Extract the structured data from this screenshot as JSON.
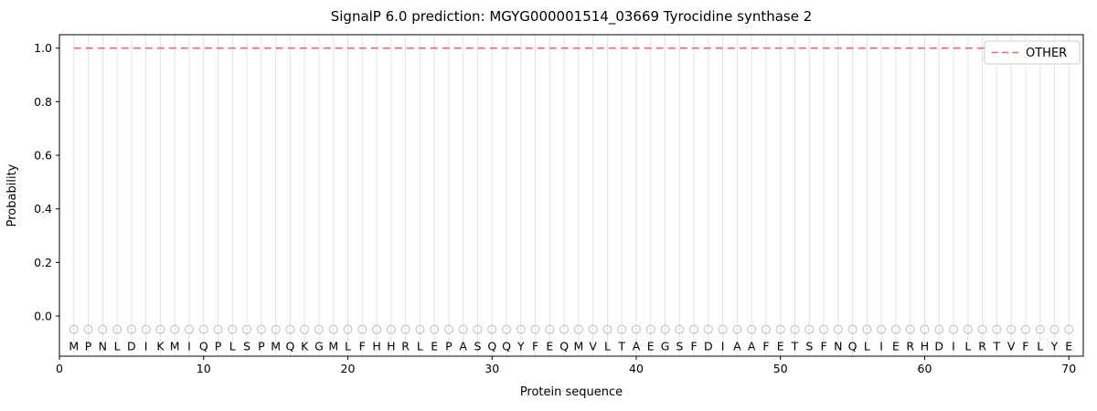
{
  "chart_data": {
    "type": "line",
    "title": "SignalP 6.0 prediction: MGYG000001514_03669 Tyrocidine synthase 2",
    "xlabel": "Protein sequence",
    "ylabel": "Probability",
    "xlim": [
      0,
      71
    ],
    "ylim": [
      -0.15,
      1.05
    ],
    "x_tick_labels": [
      "0",
      "10",
      "20",
      "30",
      "40",
      "50",
      "60",
      "70"
    ],
    "x_tick_values": [
      0,
      10,
      20,
      30,
      40,
      50,
      60,
      70
    ],
    "y_tick_labels": [
      "0.0",
      "0.2",
      "0.4",
      "0.6",
      "0.8",
      "1.0"
    ],
    "y_tick_values": [
      0.0,
      0.2,
      0.4,
      0.6,
      0.8,
      1.0
    ],
    "grid": true,
    "series": [
      {
        "name": "OTHER",
        "line_style": "dashed",
        "color": "#e86a6a",
        "constant_y": 1.0,
        "x_start": 1,
        "x_end": 70
      }
    ],
    "legend": {
      "position": "upper right",
      "entries": [
        {
          "label": "OTHER",
          "line_style": "dashed",
          "color": "#e86a6a"
        }
      ]
    },
    "sequence": [
      "M",
      "P",
      "N",
      "L",
      "D",
      "I",
      "K",
      "M",
      "I",
      "Q",
      "P",
      "L",
      "S",
      "P",
      "M",
      "Q",
      "K",
      "G",
      "M",
      "L",
      "F",
      "H",
      "H",
      "R",
      "L",
      "E",
      "P",
      "A",
      "S",
      "Q",
      "Q",
      "Y",
      "F",
      "E",
      "Q",
      "M",
      "V",
      "L",
      "T",
      "A",
      "E",
      "G",
      "S",
      "F",
      "D",
      "I",
      "A",
      "A",
      "F",
      "E",
      "T",
      "S",
      "F",
      "N",
      "Q",
      "L",
      "I",
      "E",
      "R",
      "H",
      "D",
      "I",
      "L",
      "R",
      "T",
      "V",
      "F",
      "L",
      "Y",
      "E"
    ],
    "marker": {
      "shape": "open-circle",
      "y": -0.05,
      "color": "#bdbdbd"
    },
    "letters_y": -0.115,
    "colors": {
      "grid": "#e3e3e3",
      "axis": "#000000",
      "legend_border": "#cccccc",
      "background": "#ffffff"
    }
  }
}
